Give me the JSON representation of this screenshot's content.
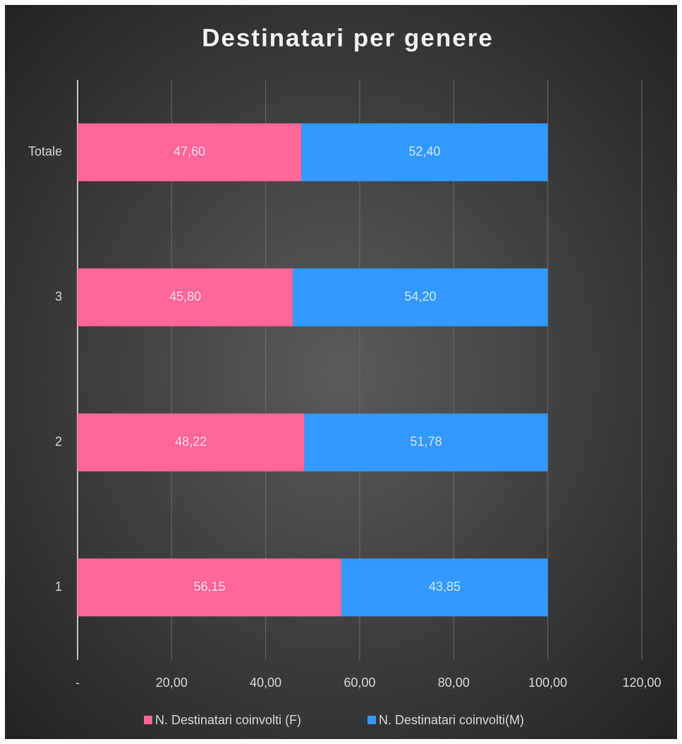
{
  "chart_data": {
    "type": "stacked_barh",
    "title": "Destinatari per genere",
    "categories": [
      "1",
      "2",
      "3",
      "Totale"
    ],
    "series": [
      {
        "name": "N. Destinatari coinvolti (F)",
        "color": "#ff6699",
        "values": [
          56.15,
          48.22,
          45.8,
          47.6
        ],
        "value_labels": [
          "56,15",
          "48,22",
          "45,80",
          "47,60"
        ]
      },
      {
        "name": "N. Destinatari coinvolti(M)",
        "color": "#3399ff",
        "values": [
          43.85,
          51.78,
          54.2,
          52.4
        ],
        "value_labels": [
          "43,85",
          "51,78",
          "54,20",
          "52,40"
        ]
      }
    ],
    "xlim": [
      0,
      120
    ],
    "xticks": [
      {
        "value": 0,
        "label": "-"
      },
      {
        "value": 20,
        "label": "20,00"
      },
      {
        "value": 40,
        "label": "40,00"
      },
      {
        "value": 60,
        "label": "60,00"
      },
      {
        "value": 80,
        "label": "80,00"
      },
      {
        "value": 100,
        "label": "100,00"
      },
      {
        "value": 120,
        "label": "120,00"
      }
    ],
    "grid": true,
    "legend": "bottom"
  }
}
